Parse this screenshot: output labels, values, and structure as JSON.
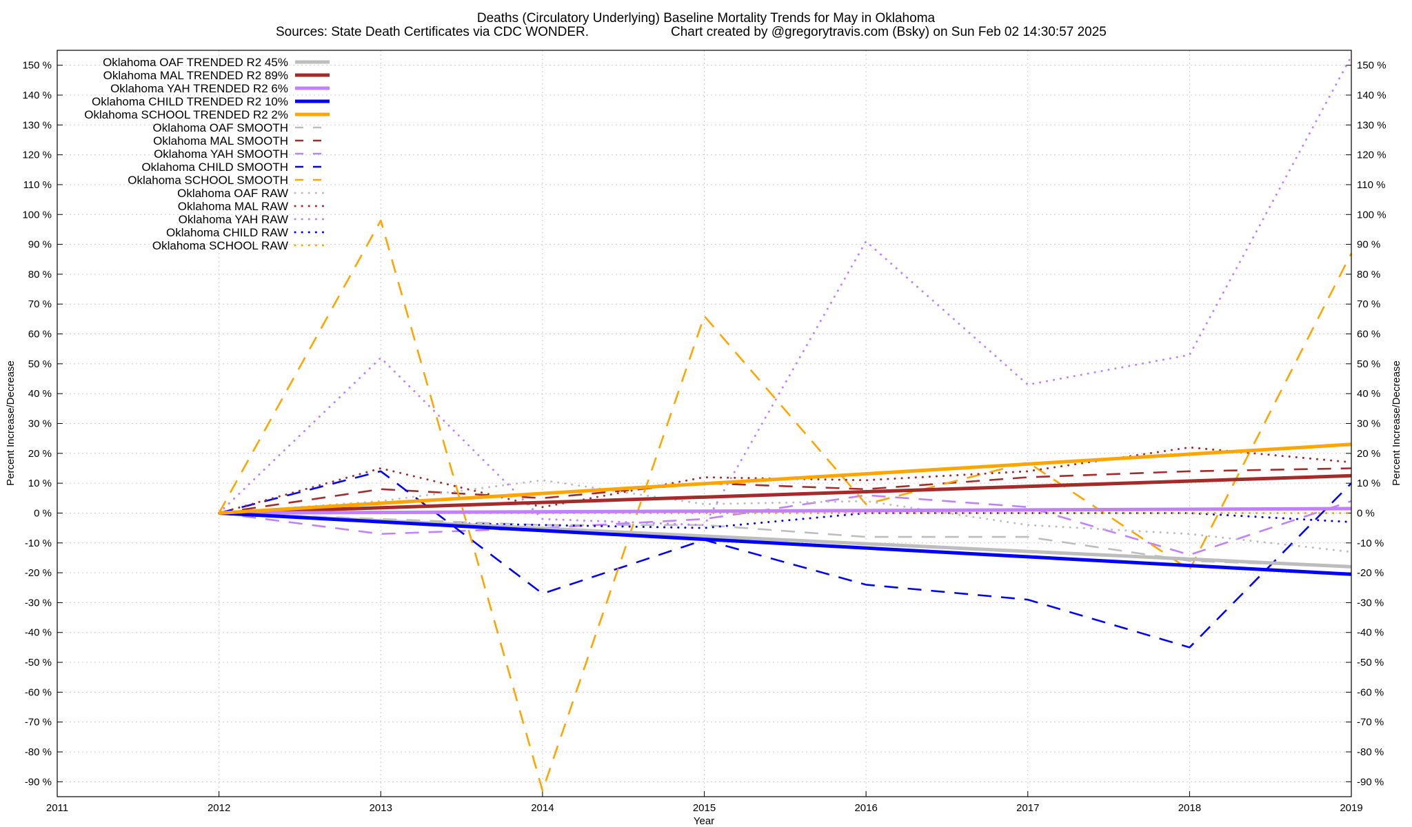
{
  "chart_data": {
    "type": "line",
    "title": "Deaths (Circulatory Underlying)  Baseline Mortality Trends for May in Oklahoma",
    "subtitle_left": "Sources: State Death Certificates via CDC WONDER.",
    "subtitle_right": "Chart created by @gregorytravis.com (Bsky) on Sun Feb 02 14:30:57 2025",
    "xlabel": "Year",
    "ylabel_left": "Percent Increase/Decrease",
    "ylabel_right": "Percent Increase/Decrease",
    "xlim": [
      2011,
      2019
    ],
    "ylim": [
      -95,
      155
    ],
    "x_ticks": [
      2011,
      2012,
      2013,
      2014,
      2015,
      2016,
      2017,
      2018,
      2019
    ],
    "x_tick_labels": [
      "2011",
      "2012",
      "2013",
      "2014",
      "2015",
      "2016",
      "2017",
      "2018",
      "2019"
    ],
    "y_ticks": [
      150,
      140,
      130,
      120,
      110,
      100,
      90,
      80,
      70,
      60,
      50,
      40,
      30,
      20,
      10,
      0,
      -10,
      -20,
      -30,
      -40,
      -50,
      -60,
      -70,
      -80,
      -90
    ],
    "y_tick_labels": [
      "150 %",
      "140 %",
      "130 %",
      "120 %",
      "110 %",
      "100 %",
      "90 %",
      "80 %",
      "70 %",
      "60 %",
      "50 %",
      "40 %",
      "30 %",
      "20 %",
      "10 %",
      "0 %",
      "-10 %",
      "-20 %",
      "-30 %",
      "-40 %",
      "-50 %",
      "-60 %",
      "-70 %",
      "-80 %",
      "-90 %"
    ],
    "grid": true,
    "legend_position": "top-left",
    "colors": {
      "OAF": "#bdbdbd",
      "MAL": "#a52a2a",
      "YAH": "#c080ff",
      "CHILD": "#0000ff",
      "SCHOOL": "#ffa500",
      "grid": "#cccccc",
      "axis": "#000000"
    },
    "series": [
      {
        "name": "Oklahoma OAF TRENDED R2  45%",
        "group": "OAF",
        "style": "trend",
        "x": [
          2012,
          2019
        ],
        "values": [
          0,
          -18
        ]
      },
      {
        "name": "Oklahoma MAL TRENDED R2  89%",
        "group": "MAL",
        "style": "trend",
        "x": [
          2012,
          2019
        ],
        "values": [
          0,
          12.5
        ]
      },
      {
        "name": "Oklahoma YAH TRENDED R2   6%",
        "group": "YAH",
        "style": "trend",
        "x": [
          2012,
          2019
        ],
        "values": [
          0,
          1.5
        ]
      },
      {
        "name": "Oklahoma CHILD TRENDED R2  10%",
        "group": "CHILD",
        "style": "trend",
        "x": [
          2012,
          2019
        ],
        "values": [
          0,
          -20.5
        ]
      },
      {
        "name": "Oklahoma SCHOOL TRENDED R2   2%",
        "group": "SCHOOL",
        "style": "trend",
        "x": [
          2012,
          2019
        ],
        "values": [
          0,
          23
        ]
      },
      {
        "name": "Oklahoma OAF SMOOTH",
        "group": "OAF",
        "style": "smooth",
        "x": [
          2012,
          2013,
          2014,
          2015,
          2016,
          2017,
          2018,
          2019
        ],
        "values": [
          0,
          -2,
          -4,
          -4,
          -8,
          -8,
          -16,
          -18
        ]
      },
      {
        "name": "Oklahoma MAL SMOOTH",
        "group": "MAL",
        "style": "smooth",
        "x": [
          2012,
          2013,
          2014,
          2015,
          2016,
          2017,
          2018,
          2019
        ],
        "values": [
          0,
          8,
          5,
          10,
          8,
          12,
          14,
          15
        ]
      },
      {
        "name": "Oklahoma YAH SMOOTH",
        "group": "YAH",
        "style": "smooth",
        "x": [
          2012,
          2013,
          2014,
          2015,
          2016,
          2017,
          2018,
          2019
        ],
        "values": [
          0,
          -7,
          -5,
          -2,
          6,
          2,
          -14,
          4
        ]
      },
      {
        "name": "Oklahoma CHILD SMOOTH",
        "group": "CHILD",
        "style": "smooth",
        "x": [
          2012,
          2013,
          2014,
          2015,
          2016,
          2017,
          2018,
          2019
        ],
        "values": [
          0,
          14,
          -27,
          -9,
          -24,
          -29,
          -45,
          10
        ]
      },
      {
        "name": "Oklahoma SCHOOL SMOOTH",
        "group": "SCHOOL",
        "style": "smooth",
        "x": [
          2012,
          2013,
          2014,
          2015,
          2016,
          2017,
          2018,
          2019
        ],
        "values": [
          0,
          98,
          -93,
          66,
          3,
          17,
          -19,
          87
        ]
      },
      {
        "name": "Oklahoma OAF RAW",
        "group": "OAF",
        "style": "raw",
        "x": [
          2012,
          2013,
          2014,
          2015,
          2016,
          2017,
          2018,
          2019
        ],
        "values": [
          0,
          4,
          11,
          3,
          4,
          -4,
          -7,
          -13
        ]
      },
      {
        "name": "Oklahoma MAL RAW",
        "group": "MAL",
        "style": "raw",
        "x": [
          2012,
          2013,
          2014,
          2015,
          2016,
          2017,
          2018,
          2019
        ],
        "values": [
          0,
          15,
          2,
          12,
          11,
          14,
          22,
          17
        ]
      },
      {
        "name": "Oklahoma YAH RAW",
        "group": "YAH",
        "style": "raw",
        "x": [
          2012,
          2013,
          2014,
          2015,
          2016,
          2017,
          2018,
          2019
        ],
        "values": [
          0,
          52,
          -2,
          -4,
          91,
          43,
          53,
          153
        ]
      },
      {
        "name": "Oklahoma CHILD RAW",
        "group": "CHILD",
        "style": "raw",
        "x": [
          2012,
          2013,
          2014,
          2015,
          2016,
          2017,
          2018,
          2019
        ],
        "values": [
          0,
          -3,
          -4,
          -5,
          0,
          0,
          0,
          -3
        ]
      },
      {
        "name": "Oklahoma SCHOOL RAW",
        "group": "SCHOOL",
        "style": "raw",
        "x": [
          2012,
          2013,
          2014,
          2015,
          2016,
          2017,
          2018,
          2019
        ],
        "values": [
          0,
          0,
          0,
          0,
          0,
          0,
          0,
          0
        ]
      }
    ]
  }
}
